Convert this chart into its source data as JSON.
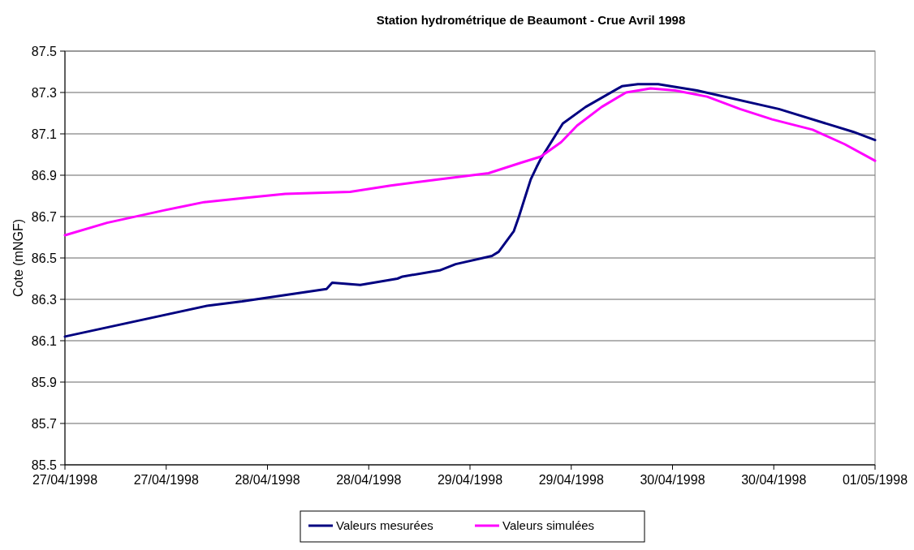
{
  "chart_data": {
    "type": "line",
    "title": "Station hydrométrique de Beaumont - Crue Avril 1998",
    "ylabel": "Cote (mNGF)",
    "xlim": [
      "1998-04-27T00:00",
      "1998-05-01T00:00"
    ],
    "xticks": [
      {
        "value": "1998-04-27T00:00",
        "label": "27/04/1998"
      },
      {
        "value": "1998-04-27T12:00",
        "label": "27/04/1998"
      },
      {
        "value": "1998-04-28T00:00",
        "label": "28/04/1998"
      },
      {
        "value": "1998-04-28T12:00",
        "label": "28/04/1998"
      },
      {
        "value": "1998-04-29T00:00",
        "label": "29/04/1998"
      },
      {
        "value": "1998-04-29T12:00",
        "label": "29/04/1998"
      },
      {
        "value": "1998-04-30T00:00",
        "label": "30/04/1998"
      },
      {
        "value": "1998-04-30T12:00",
        "label": "30/04/1998"
      },
      {
        "value": "1998-05-01T00:00",
        "label": "01/05/1998"
      }
    ],
    "ylim": [
      85.5,
      87.5
    ],
    "yticks": [
      85.5,
      85.7,
      85.9,
      86.1,
      86.3,
      86.5,
      86.7,
      86.9,
      87.1,
      87.3,
      87.5
    ],
    "grid": "y",
    "legend": "bottom",
    "marker": "none",
    "line_style": "solid",
    "series": [
      {
        "name": "Valeurs mesurées",
        "color": "#000080",
        "x": [
          "1998-04-27T00:00",
          "1998-04-27T17:00",
          "1998-04-27T21:00",
          "1998-04-28T07:00",
          "1998-04-28T07:40",
          "1998-04-28T11:00",
          "1998-04-28T15:24",
          "1998-04-28T16:00",
          "1998-04-28T20:24",
          "1998-04-28T22:18",
          "1998-04-29T02:36",
          "1998-04-29T03:24",
          "1998-04-29T04:18",
          "1998-04-29T05:12",
          "1998-04-29T05:48",
          "1998-04-29T06:30",
          "1998-04-29T07:12",
          "1998-04-29T07:54",
          "1998-04-29T08:24",
          "1998-04-29T11:00",
          "1998-04-29T13:42",
          "1998-04-29T18:00",
          "1998-04-29T19:54",
          "1998-04-29T22:18",
          "1998-04-30T02:54",
          "1998-04-30T12:36",
          "1998-04-30T21:24",
          "1998-05-01T00:00"
        ],
        "values": [
          86.12,
          86.27,
          86.29,
          86.35,
          86.38,
          86.37,
          86.4,
          86.41,
          86.44,
          86.47,
          86.51,
          86.53,
          86.58,
          86.63,
          86.7,
          86.79,
          86.88,
          86.94,
          86.98,
          87.15,
          87.23,
          87.33,
          87.34,
          87.34,
          87.31,
          87.22,
          87.11,
          87.07
        ]
      },
      {
        "name": "Valeurs simulées",
        "color": "#ff00ff",
        "x": [
          "1998-04-27T00:00",
          "1998-04-27T05:00",
          "1998-04-27T11:42",
          "1998-04-27T16:30",
          "1998-04-27T21:18",
          "1998-04-28T02:06",
          "1998-04-28T09:48",
          "1998-04-28T14:36",
          "1998-04-28T20:24",
          "1998-04-29T02:12",
          "1998-04-29T06:00",
          "1998-04-29T08:24",
          "1998-04-29T10:48",
          "1998-04-29T12:42",
          "1998-04-29T15:36",
          "1998-04-29T18:30",
          "1998-04-29T21:24",
          "1998-04-30T00:18",
          "1998-04-30T04:06",
          "1998-04-30T08:00",
          "1998-04-30T11:48",
          "1998-04-30T16:36",
          "1998-04-30T20:24",
          "1998-05-01T00:00"
        ],
        "values": [
          86.61,
          86.67,
          86.73,
          86.77,
          86.79,
          86.81,
          86.82,
          86.85,
          86.88,
          86.91,
          86.96,
          86.99,
          87.06,
          87.14,
          87.23,
          87.3,
          87.32,
          87.31,
          87.28,
          87.22,
          87.17,
          87.12,
          87.05,
          86.97
        ]
      }
    ]
  }
}
